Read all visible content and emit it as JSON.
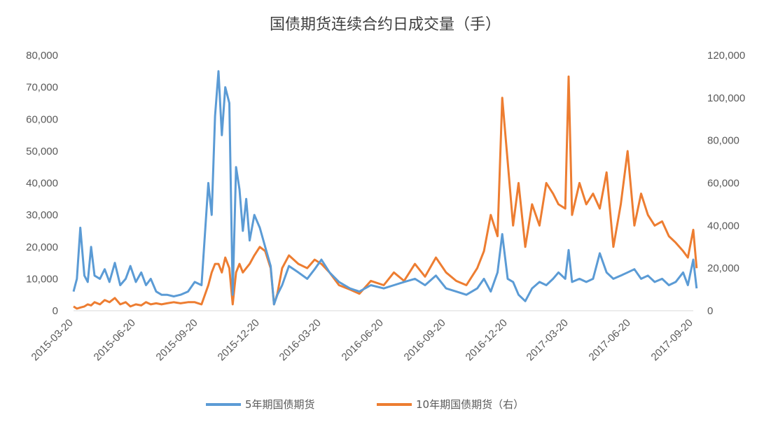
{
  "chart_data": {
    "type": "line",
    "title": "国债期货连续合约日成交量（手）",
    "x_ticks": [
      "2015-03-20",
      "2015-06-20",
      "2015-09-20",
      "2015-12-20",
      "2016-03-20",
      "2016-06-20",
      "2016-09-20",
      "2016-12-20",
      "2017-03-20",
      "2017-06-20",
      "2017-09-20"
    ],
    "y_left": {
      "min": 0,
      "max": 80000,
      "ticks": [
        "0",
        "10,000",
        "20,000",
        "30,000",
        "40,000",
        "50,000",
        "60,000",
        "70,000",
        "80,000"
      ]
    },
    "y_right": {
      "min": 0,
      "max": 120000,
      "ticks": [
        "0",
        "20,000",
        "40,000",
        "60,000",
        "80,000",
        "100,000",
        "120,000"
      ]
    },
    "grid": false,
    "legend_position": "bottom",
    "series": [
      {
        "name": "5年期国债期货",
        "axis": "left",
        "color": "#5B9BD5",
        "x": [
          "2015-03-20",
          "2015-03-25",
          "2015-03-30",
          "2015-04-05",
          "2015-04-10",
          "2015-04-15",
          "2015-04-20",
          "2015-04-28",
          "2015-05-05",
          "2015-05-12",
          "2015-05-20",
          "2015-05-28",
          "2015-06-05",
          "2015-06-12",
          "2015-06-20",
          "2015-06-28",
          "2015-07-05",
          "2015-07-12",
          "2015-07-20",
          "2015-07-28",
          "2015-08-05",
          "2015-08-15",
          "2015-08-25",
          "2015-09-05",
          "2015-09-15",
          "2015-09-25",
          "2015-10-05",
          "2015-10-10",
          "2015-10-15",
          "2015-10-20",
          "2015-10-25",
          "2015-10-30",
          "2015-11-05",
          "2015-11-10",
          "2015-11-15",
          "2015-11-20",
          "2015-11-25",
          "2015-11-30",
          "2015-12-05",
          "2015-12-12",
          "2015-12-20",
          "2015-12-28",
          "2016-01-05",
          "2016-01-10",
          "2016-01-15",
          "2016-01-22",
          "2016-02-01",
          "2016-02-15",
          "2016-02-28",
          "2016-03-10",
          "2016-03-20",
          "2016-04-01",
          "2016-04-15",
          "2016-05-01",
          "2016-05-15",
          "2016-06-01",
          "2016-06-20",
          "2016-07-05",
          "2016-07-20",
          "2016-08-05",
          "2016-08-20",
          "2016-09-05",
          "2016-09-20",
          "2016-10-05",
          "2016-10-20",
          "2016-11-05",
          "2016-11-15",
          "2016-11-25",
          "2016-12-05",
          "2016-12-12",
          "2016-12-20",
          "2016-12-28",
          "2017-01-05",
          "2017-01-15",
          "2017-01-25",
          "2017-02-05",
          "2017-02-15",
          "2017-02-25",
          "2017-03-05",
          "2017-03-15",
          "2017-03-20",
          "2017-03-25",
          "2017-04-05",
          "2017-04-15",
          "2017-04-25",
          "2017-05-05",
          "2017-05-15",
          "2017-05-25",
          "2017-06-05",
          "2017-06-15",
          "2017-06-25",
          "2017-07-05",
          "2017-07-15",
          "2017-07-25",
          "2017-08-05",
          "2017-08-15",
          "2017-08-25",
          "2017-09-05",
          "2017-09-12",
          "2017-09-20",
          "2017-09-25"
        ],
        "values": [
          6000,
          10000,
          26000,
          11000,
          9000,
          20000,
          11000,
          10000,
          13000,
          9000,
          15000,
          8000,
          10000,
          14000,
          9000,
          12000,
          8000,
          10000,
          6000,
          5000,
          5000,
          4500,
          5000,
          6000,
          9000,
          8000,
          40000,
          30000,
          61000,
          75000,
          55000,
          70000,
          65000,
          5000,
          45000,
          38000,
          25000,
          35000,
          22000,
          30000,
          26000,
          20000,
          14000,
          2000,
          5000,
          8000,
          14000,
          12000,
          10000,
          13000,
          16000,
          12000,
          9000,
          7000,
          6000,
          8000,
          7000,
          8000,
          9000,
          10000,
          8000,
          11000,
          7000,
          6000,
          5000,
          7000,
          10000,
          6000,
          12000,
          24000,
          10000,
          9000,
          5000,
          3000,
          7000,
          9000,
          8000,
          10000,
          12000,
          10000,
          19000,
          9000,
          10000,
          9000,
          10000,
          18000,
          12000,
          10000,
          11000,
          12000,
          13000,
          10000,
          11000,
          9000,
          10000,
          8000,
          9000,
          12000,
          8000,
          16000,
          7000
        ]
      },
      {
        "name": "10年期国债期货（右）",
        "axis": "right",
        "color": "#ED7D31",
        "x": [
          "2015-03-20",
          "2015-03-25",
          "2015-03-30",
          "2015-04-05",
          "2015-04-10",
          "2015-04-15",
          "2015-04-20",
          "2015-04-28",
          "2015-05-05",
          "2015-05-12",
          "2015-05-20",
          "2015-05-28",
          "2015-06-05",
          "2015-06-12",
          "2015-06-20",
          "2015-06-28",
          "2015-07-05",
          "2015-07-12",
          "2015-07-20",
          "2015-07-28",
          "2015-08-05",
          "2015-08-15",
          "2015-08-25",
          "2015-09-05",
          "2015-09-15",
          "2015-09-25",
          "2015-10-05",
          "2015-10-10",
          "2015-10-15",
          "2015-10-20",
          "2015-10-25",
          "2015-10-30",
          "2015-11-05",
          "2015-11-10",
          "2015-11-15",
          "2015-11-20",
          "2015-11-25",
          "2015-11-30",
          "2015-12-05",
          "2015-12-12",
          "2015-12-20",
          "2015-12-28",
          "2016-01-05",
          "2016-01-10",
          "2016-01-15",
          "2016-01-22",
          "2016-02-01",
          "2016-02-15",
          "2016-02-28",
          "2016-03-10",
          "2016-03-20",
          "2016-04-01",
          "2016-04-15",
          "2016-05-01",
          "2016-05-15",
          "2016-06-01",
          "2016-06-20",
          "2016-07-05",
          "2016-07-20",
          "2016-08-05",
          "2016-08-20",
          "2016-09-05",
          "2016-09-20",
          "2016-10-05",
          "2016-10-20",
          "2016-11-05",
          "2016-11-15",
          "2016-11-25",
          "2016-12-05",
          "2016-12-12",
          "2016-12-20",
          "2016-12-28",
          "2017-01-05",
          "2017-01-15",
          "2017-01-25",
          "2017-02-05",
          "2017-02-15",
          "2017-02-25",
          "2017-03-05",
          "2017-03-15",
          "2017-03-20",
          "2017-03-25",
          "2017-04-05",
          "2017-04-15",
          "2017-04-25",
          "2017-05-05",
          "2017-05-15",
          "2017-05-25",
          "2017-06-05",
          "2017-06-15",
          "2017-06-25",
          "2017-07-05",
          "2017-07-15",
          "2017-07-25",
          "2017-08-05",
          "2017-08-15",
          "2017-08-25",
          "2017-09-05",
          "2017-09-12",
          "2017-09-20",
          "2017-09-25"
        ],
        "values": [
          2000,
          1000,
          1500,
          2000,
          3000,
          2500,
          4000,
          3000,
          5000,
          4000,
          6000,
          3000,
          4000,
          2000,
          3000,
          2500,
          4000,
          3000,
          3500,
          3000,
          3500,
          4000,
          3500,
          4000,
          4000,
          3000,
          12000,
          18000,
          22000,
          22000,
          18000,
          25000,
          20000,
          3000,
          18000,
          22000,
          18000,
          20000,
          22000,
          26000,
          30000,
          28000,
          20000,
          3000,
          8000,
          20000,
          26000,
          22000,
          20000,
          24000,
          22000,
          18000,
          12000,
          10000,
          8000,
          14000,
          12000,
          18000,
          14000,
          22000,
          16000,
          25000,
          18000,
          14000,
          12000,
          20000,
          28000,
          45000,
          35000,
          100000,
          70000,
          40000,
          60000,
          30000,
          50000,
          40000,
          60000,
          55000,
          50000,
          48000,
          110000,
          45000,
          60000,
          50000,
          55000,
          48000,
          65000,
          30000,
          50000,
          75000,
          40000,
          55000,
          45000,
          40000,
          42000,
          35000,
          32000,
          28000,
          25000,
          38000,
          20000
        ]
      }
    ]
  }
}
